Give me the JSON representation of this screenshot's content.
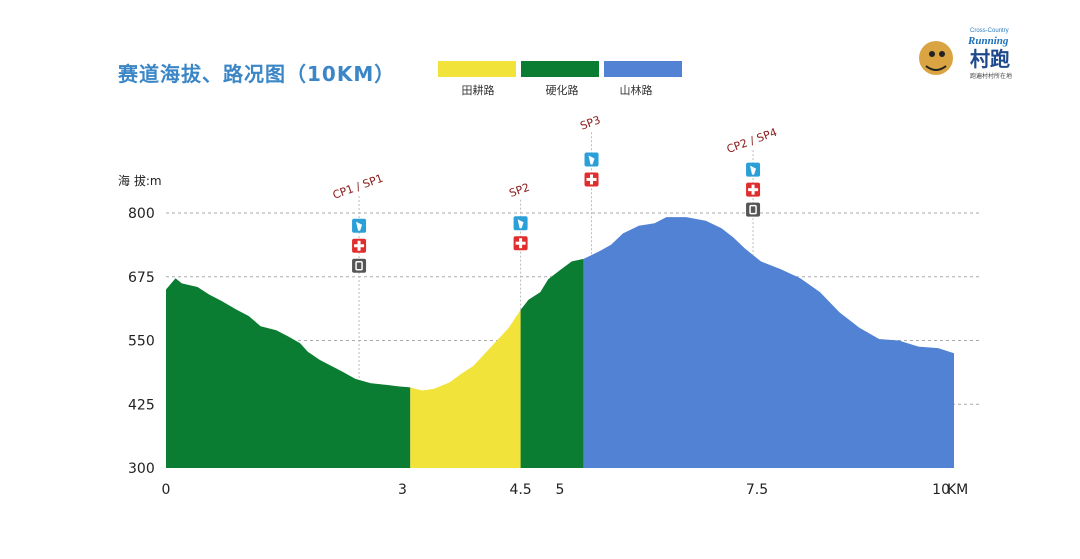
{
  "title": "赛道海拔、路况图（10KM）",
  "legend": [
    {
      "label": "田耕路",
      "color": "#f2e33b"
    },
    {
      "label": "硬化路",
      "color": "#0b7d32"
    },
    {
      "label": "山林路",
      "color": "#5282d4"
    }
  ],
  "logo": {
    "text_top": "Cross-Country",
    "text_mid": "Running",
    "text_main": "村跑",
    "text_sub": "跑遍村村所在地"
  },
  "chart_data": {
    "type": "area",
    "ylabel": "海 拔:m",
    "xlabel": "KM",
    "xlim": [
      0,
      10
    ],
    "ylim": [
      300,
      800
    ],
    "y_ticks": [
      300,
      425,
      550,
      675,
      800
    ],
    "x_ticks": [
      {
        "value": 0,
        "label": "0"
      },
      {
        "value": 3,
        "label": "3"
      },
      {
        "value": 4.5,
        "label": "4.5"
      },
      {
        "value": 5,
        "label": "5"
      },
      {
        "value": 7.5,
        "label": "7.5"
      },
      {
        "value": 10,
        "label": "10"
      }
    ],
    "segments": [
      {
        "surface": "硬化路",
        "from": 0,
        "to": 3.1
      },
      {
        "surface": "田耕路",
        "from": 3.1,
        "to": 4.5
      },
      {
        "surface": "硬化路",
        "from": 4.5,
        "to": 5.3
      },
      {
        "surface": "山林路",
        "from": 5.3,
        "to": 10
      }
    ],
    "profile": [
      [
        0,
        650
      ],
      [
        0.12,
        672
      ],
      [
        0.2,
        662
      ],
      [
        0.4,
        655
      ],
      [
        0.55,
        640
      ],
      [
        0.7,
        628
      ],
      [
        0.9,
        610
      ],
      [
        1.05,
        598
      ],
      [
        1.2,
        578
      ],
      [
        1.4,
        570
      ],
      [
        1.55,
        558
      ],
      [
        1.7,
        545
      ],
      [
        1.8,
        528
      ],
      [
        1.95,
        512
      ],
      [
        2.1,
        500
      ],
      [
        2.25,
        488
      ],
      [
        2.4,
        475
      ],
      [
        2.6,
        466
      ],
      [
        2.8,
        463
      ],
      [
        2.95,
        460
      ],
      [
        3.1,
        458
      ],
      [
        3.25,
        452
      ],
      [
        3.4,
        455
      ],
      [
        3.6,
        468
      ],
      [
        3.75,
        485
      ],
      [
        3.9,
        500
      ],
      [
        4.05,
        525
      ],
      [
        4.2,
        550
      ],
      [
        4.35,
        575
      ],
      [
        4.5,
        610
      ],
      [
        4.6,
        630
      ],
      [
        4.75,
        645
      ],
      [
        4.85,
        670
      ],
      [
        5.0,
        688
      ],
      [
        5.15,
        705
      ],
      [
        5.3,
        710
      ],
      [
        5.5,
        725
      ],
      [
        5.65,
        738
      ],
      [
        5.8,
        760
      ],
      [
        6.0,
        775
      ],
      [
        6.2,
        780
      ],
      [
        6.35,
        792
      ],
      [
        6.6,
        792
      ],
      [
        6.85,
        785
      ],
      [
        7.05,
        770
      ],
      [
        7.2,
        752
      ],
      [
        7.35,
        730
      ],
      [
        7.55,
        705
      ],
      [
        7.8,
        690
      ],
      [
        8.05,
        672
      ],
      [
        8.3,
        645
      ],
      [
        8.55,
        605
      ],
      [
        8.8,
        575
      ],
      [
        9.05,
        553
      ],
      [
        9.3,
        550
      ],
      [
        9.55,
        538
      ],
      [
        9.8,
        535
      ],
      [
        10.0,
        525
      ]
    ],
    "checkpoints": [
      {
        "label": "CP1 / SP1",
        "km": 2.45,
        "icons": [
          "water",
          "medical",
          "toilet"
        ],
        "label_alt": 845,
        "icons_top_alt": 775
      },
      {
        "label": "SP2",
        "km": 4.5,
        "icons": [
          "water",
          "medical"
        ],
        "label_alt": 838,
        "icons_top_alt": 780
      },
      {
        "label": "SP3",
        "km": 5.4,
        "icons": [
          "water",
          "medical"
        ],
        "label_alt": 970,
        "icons_top_alt": 905
      },
      {
        "label": "CP2 / SP4",
        "km": 7.45,
        "icons": [
          "water",
          "medical",
          "toilet"
        ],
        "label_alt": 935,
        "icons_top_alt": 885
      }
    ]
  }
}
